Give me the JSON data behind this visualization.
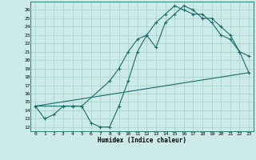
{
  "xlabel": "Humidex (Indice chaleur)",
  "bg_color": "#cceae7",
  "grid_color": "#aad4d0",
  "line_color": "#1a6b6b",
  "xlim": [
    -0.5,
    23.5
  ],
  "ylim": [
    11.5,
    27.0
  ],
  "xticks": [
    0,
    1,
    2,
    3,
    4,
    5,
    6,
    7,
    8,
    9,
    10,
    11,
    12,
    13,
    14,
    15,
    16,
    17,
    18,
    19,
    20,
    21,
    22,
    23
  ],
  "yticks": [
    12,
    13,
    14,
    15,
    16,
    17,
    18,
    19,
    20,
    21,
    22,
    23,
    24,
    25,
    26
  ],
  "line1_x": [
    0,
    1,
    2,
    3,
    4,
    5,
    6,
    7,
    8,
    9,
    10,
    11,
    12,
    13,
    14,
    15,
    16,
    17,
    18,
    19,
    20,
    21,
    22,
    23
  ],
  "line1_y": [
    14.5,
    13.0,
    13.5,
    14.5,
    14.5,
    14.5,
    12.5,
    12.0,
    12.0,
    14.5,
    17.5,
    21.0,
    23.0,
    21.5,
    24.5,
    25.5,
    26.5,
    26.0,
    25.0,
    25.0,
    24.0,
    23.0,
    21.0,
    20.5
  ],
  "line2_x": [
    0,
    3,
    4,
    5,
    8,
    9,
    10,
    11,
    12,
    13,
    14,
    15,
    16,
    17,
    18,
    19,
    20,
    21,
    22,
    23
  ],
  "line2_y": [
    14.5,
    14.5,
    14.5,
    14.5,
    17.5,
    19.0,
    21.0,
    22.5,
    23.0,
    24.5,
    25.5,
    26.5,
    26.0,
    25.5,
    25.5,
    24.5,
    23.0,
    22.5,
    21.0,
    18.5
  ],
  "line3_x": [
    0,
    23
  ],
  "line3_y": [
    14.5,
    18.5
  ]
}
